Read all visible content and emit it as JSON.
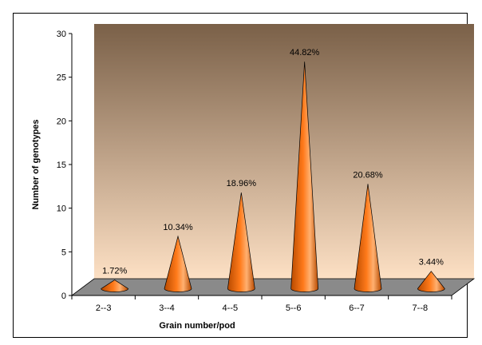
{
  "chart_data": {
    "type": "bar",
    "bar_shape": "cone",
    "three_d": true,
    "categories": [
      "2--3",
      "3--4",
      "4--5",
      "5--6",
      "6--7",
      "7--8"
    ],
    "values": [
      1,
      6,
      11,
      26,
      12,
      2
    ],
    "data_labels": [
      "1.72%",
      "10.34%",
      "18.96%",
      "44.82%",
      "20.68%",
      "3.44%"
    ],
    "xlabel": "Grain number/pod",
    "ylabel": "Number of genotypes",
    "ylim": [
      0,
      30
    ],
    "yticks": [
      0,
      5,
      10,
      15,
      20,
      25,
      30
    ],
    "grid": false,
    "legend": "none",
    "colors": {
      "cone_dark": "#b84a00",
      "cone_mid": "#ff7a1a",
      "cone_light": "#ffb070",
      "floor": "#8a8a8a",
      "wall_top": "#7a6048",
      "wall_bottom": "#fde0c4"
    }
  }
}
